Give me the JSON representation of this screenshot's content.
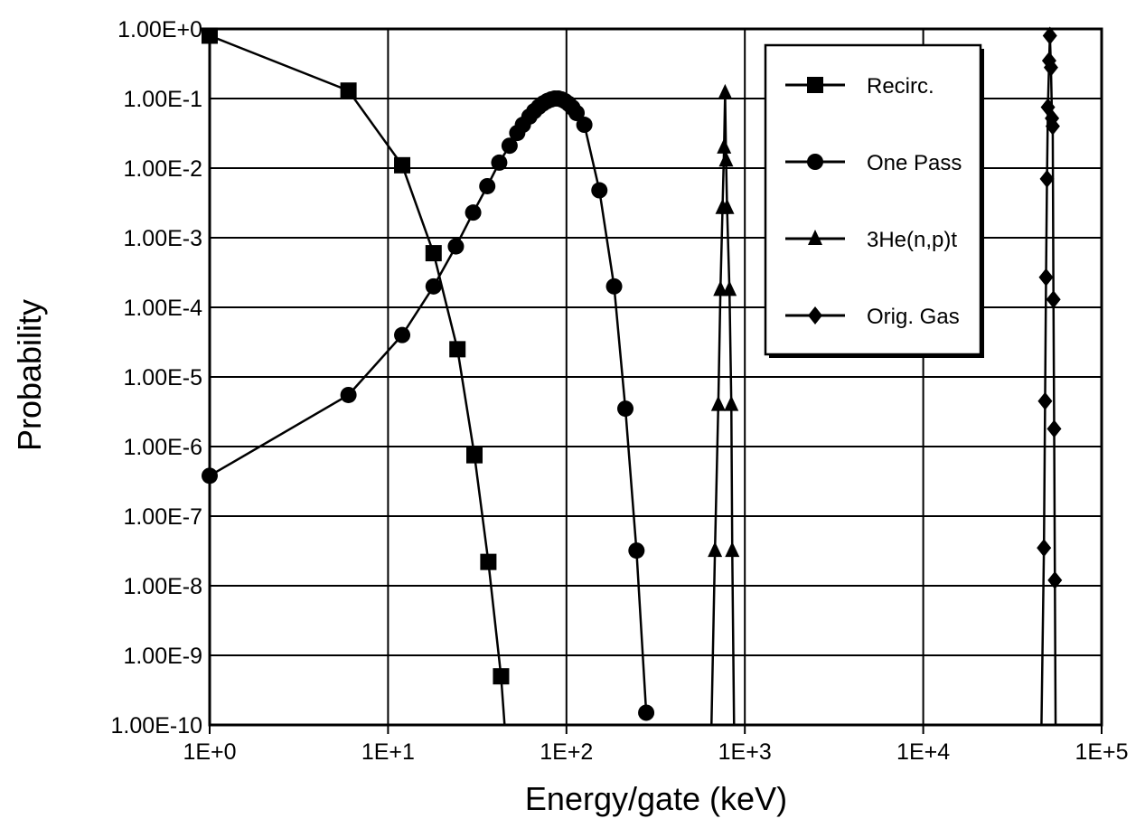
{
  "chart_data": {
    "type": "scatter",
    "xlabel": "Energy/gate (keV)",
    "ylabel": "Probability",
    "x_scale": "log",
    "y_scale": "log",
    "xlim": [
      1,
      100000
    ],
    "ylim": [
      1e-10,
      1
    ],
    "x_tick_labels": [
      "1E+0",
      "1E+1",
      "1E+2",
      "1E+3",
      "1E+4",
      "1E+5"
    ],
    "y_tick_labels": [
      "1.00E+0",
      "1.00E-1",
      "1.00E-2",
      "1.00E-3",
      "1.00E-4",
      "1.00E-5",
      "1.00E-6",
      "1.00E-7",
      "1.00E-8",
      "1.00E-9",
      "1.00E-10"
    ],
    "grid": true,
    "legend_position": "top-right",
    "series": [
      {
        "name": "Recirc.",
        "marker": "square",
        "points": [
          [
            1,
            0.8
          ],
          [
            6,
            0.13
          ],
          [
            12,
            0.011
          ],
          [
            18,
            0.0006
          ],
          [
            24.5,
            2.5e-05
          ],
          [
            30.5,
            7.5e-07
          ],
          [
            36.5,
            2.2e-08
          ],
          [
            43,
            5e-10
          ],
          [
            45,
            1e-10
          ]
        ]
      },
      {
        "name": "One Pass",
        "marker": "circle",
        "points": [
          [
            1,
            3.8e-07
          ],
          [
            6,
            5.5e-06
          ],
          [
            12,
            4e-05
          ],
          [
            18,
            0.0002
          ],
          [
            24,
            0.00075
          ],
          [
            30,
            0.0023
          ],
          [
            36,
            0.0055
          ],
          [
            42,
            0.012
          ],
          [
            48,
            0.021
          ],
          [
            53,
            0.032
          ],
          [
            57,
            0.042
          ],
          [
            62,
            0.055
          ],
          [
            66,
            0.066
          ],
          [
            70,
            0.076
          ],
          [
            74,
            0.085
          ],
          [
            78,
            0.092
          ],
          [
            82,
            0.097
          ],
          [
            86,
            0.1
          ],
          [
            90,
            0.1
          ],
          [
            94,
            0.097
          ],
          [
            98,
            0.092
          ],
          [
            103,
            0.084
          ],
          [
            108,
            0.074
          ],
          [
            114,
            0.062
          ],
          [
            126,
            0.042
          ],
          [
            153,
            0.0048
          ],
          [
            185,
            0.0002
          ],
          [
            214,
            3.5e-06
          ],
          [
            247,
            3.2e-08
          ],
          [
            280,
            1.5e-10
          ]
        ]
      },
      {
        "name": "3He(n,p)t",
        "marker": "triangle",
        "points": [
          [
            650,
            1e-10
          ],
          [
            680,
            3.2e-08
          ],
          [
            710,
            4e-06
          ],
          [
            730,
            0.00018
          ],
          [
            750,
            0.0027
          ],
          [
            765,
            0.02
          ],
          [
            775,
            0.12
          ],
          [
            785,
            0.013
          ],
          [
            795,
            0.0027
          ],
          [
            820,
            0.00018
          ],
          [
            840,
            4e-06
          ],
          [
            850,
            3.2e-08
          ],
          [
            870,
            1e-10
          ]
        ]
      },
      {
        "name": "Orig. Gas",
        "marker": "diamond",
        "points": [
          [
            46000,
            1e-10
          ],
          [
            47500,
            3.5e-08
          ],
          [
            48200,
            4.5e-06
          ],
          [
            48800,
            0.00027
          ],
          [
            49400,
            0.007
          ],
          [
            50000,
            0.075
          ],
          [
            50800,
            0.35
          ],
          [
            51300,
            0.8
          ],
          [
            52000,
            0.28
          ],
          [
            52700,
            0.052
          ],
          [
            53200,
            0.04
          ],
          [
            53700,
            0.00013
          ],
          [
            54200,
            1.8e-06
          ],
          [
            54700,
            1.2e-08
          ],
          [
            55200,
            1e-10
          ]
        ]
      }
    ]
  }
}
